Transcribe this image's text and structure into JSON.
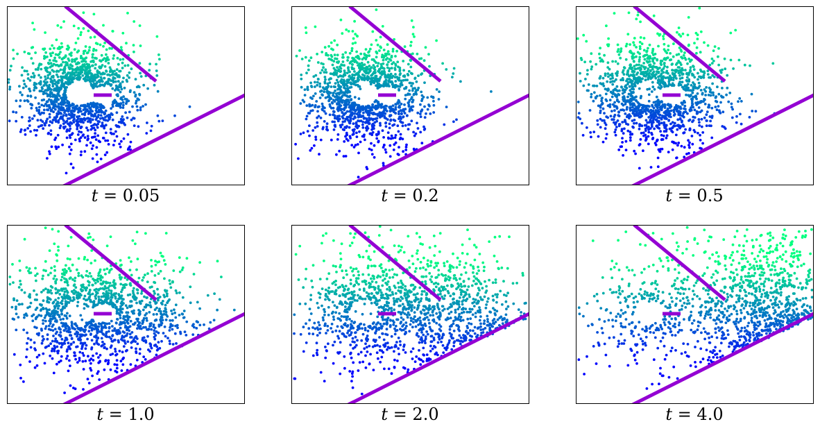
{
  "chart_data": [
    {
      "type": "scatter",
      "panel_label": "t = 0.05",
      "t_var": "t",
      "t_value": "0.05",
      "spread": 0.55
    },
    {
      "type": "scatter",
      "panel_label": "t = 0.2",
      "t_var": "t",
      "t_value": "0.2",
      "spread": 0.75
    },
    {
      "type": "scatter",
      "panel_label": "t = 0.5",
      "t_var": "t",
      "t_value": "0.5",
      "spread": 1.0
    },
    {
      "type": "scatter",
      "panel_label": "t = 1.0",
      "t_var": "t",
      "t_value": "1.0",
      "spread": 1.35
    },
    {
      "type": "scatter",
      "panel_label": "t = 2.0",
      "t_var": "t",
      "t_value": "2.0",
      "spread": 1.75
    },
    {
      "type": "scatter",
      "panel_label": "t = 4.0",
      "t_var": "t",
      "t_value": "4.0",
      "spread": 2.2
    }
  ],
  "style": {
    "obstacle_color": "#9400d3",
    "colormap": "winter",
    "colormap_low": "#0000ff",
    "colormap_high": "#00ff80",
    "axes_ticks": false
  }
}
